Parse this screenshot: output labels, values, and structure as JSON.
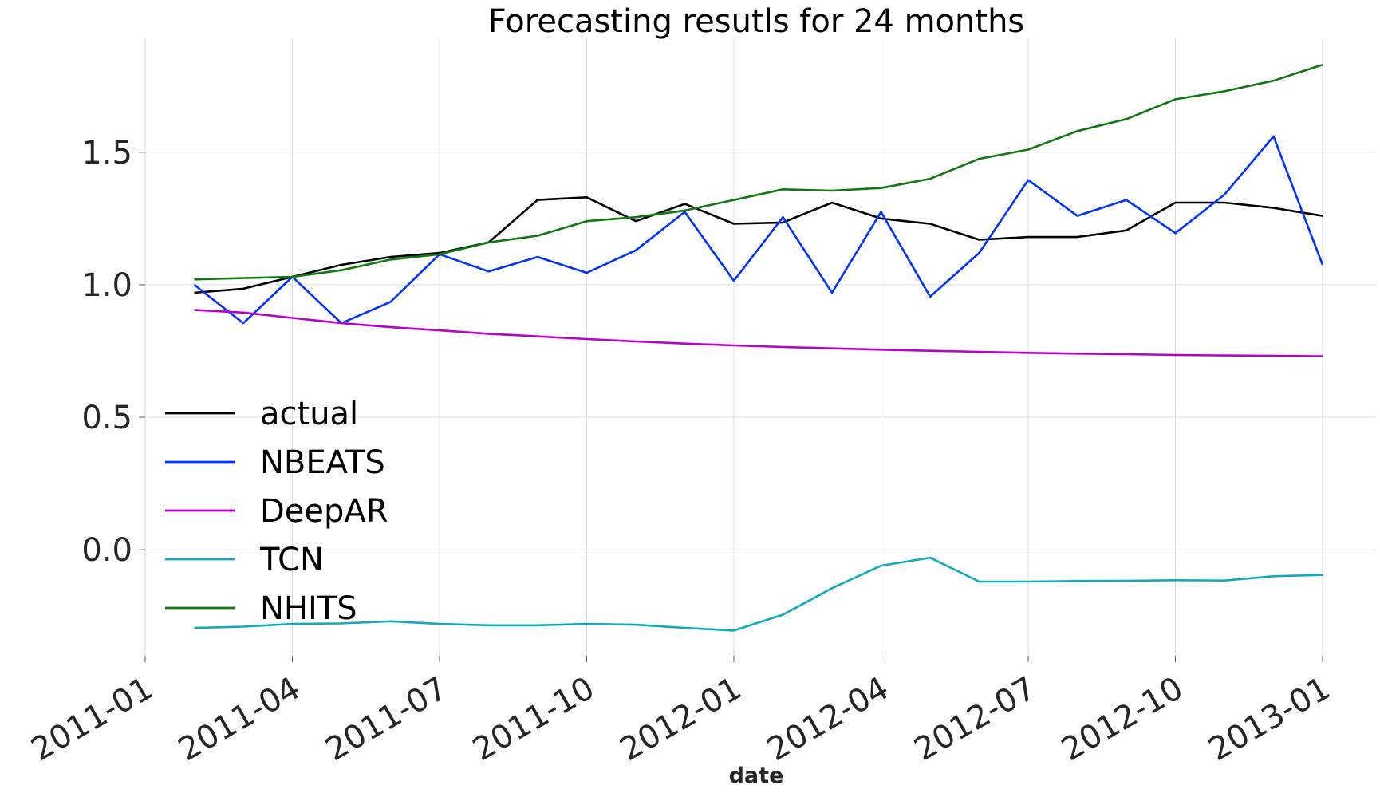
{
  "chart_data": {
    "type": "line",
    "title": "Forecasting resutls for 24 months",
    "xlabel": "date",
    "ylabel": "",
    "x_ticks": [
      "2011-01",
      "2011-04",
      "2011-07",
      "2011-10",
      "2012-01",
      "2012-04",
      "2012-07",
      "2012-10",
      "2013-01"
    ],
    "y_ticks": [
      "0.0",
      "0.5",
      "1.0",
      "1.5"
    ],
    "y_tick_values": [
      0.0,
      0.5,
      1.0,
      1.5
    ],
    "xlim": [
      "2011-01",
      "2013-01"
    ],
    "ylim": [
      -0.4,
      1.93
    ],
    "grid": true,
    "legend_position": "center-left",
    "x": [
      "2011-02",
      "2011-03",
      "2011-04",
      "2011-05",
      "2011-06",
      "2011-07",
      "2011-08",
      "2011-09",
      "2011-10",
      "2011-11",
      "2011-12",
      "2012-01",
      "2012-02",
      "2012-03",
      "2012-04",
      "2012-05",
      "2012-06",
      "2012-07",
      "2012-08",
      "2012-09",
      "2012-10",
      "2012-11",
      "2012-12",
      "2013-01"
    ],
    "series": [
      {
        "name": "actual",
        "color": "#000000",
        "values": [
          0.97,
          0.985,
          1.03,
          1.075,
          1.105,
          1.12,
          1.16,
          1.32,
          1.33,
          1.24,
          1.305,
          1.23,
          1.235,
          1.31,
          1.25,
          1.23,
          1.17,
          1.18,
          1.18,
          1.205,
          1.31,
          1.31,
          1.29,
          1.26
        ]
      },
      {
        "name": "NBEATS",
        "color": "#0033ff",
        "values": [
          1.0,
          0.855,
          1.03,
          0.855,
          0.935,
          1.115,
          1.05,
          1.105,
          1.045,
          1.13,
          1.275,
          1.015,
          1.255,
          0.97,
          1.275,
          0.955,
          1.12,
          1.395,
          1.26,
          1.32,
          1.195,
          1.34,
          1.56,
          1.075
        ]
      },
      {
        "name": "DeepAR",
        "color": "#bb00cc",
        "values": [
          0.905,
          0.895,
          0.875,
          0.855,
          0.84,
          0.828,
          0.815,
          0.805,
          0.795,
          0.786,
          0.778,
          0.771,
          0.765,
          0.76,
          0.755,
          0.751,
          0.747,
          0.743,
          0.74,
          0.738,
          0.735,
          0.733,
          0.732,
          0.73
        ]
      },
      {
        "name": "TCN",
        "color": "#11aabb",
        "values": [
          -0.295,
          -0.29,
          -0.28,
          -0.278,
          -0.27,
          -0.28,
          -0.285,
          -0.285,
          -0.28,
          -0.283,
          -0.295,
          -0.305,
          -0.245,
          -0.145,
          -0.06,
          -0.03,
          -0.12,
          -0.12,
          -0.118,
          -0.117,
          -0.115,
          -0.116,
          -0.1,
          -0.095
        ]
      },
      {
        "name": "NHITS",
        "color": "#117711",
        "values": [
          1.02,
          1.025,
          1.03,
          1.055,
          1.095,
          1.115,
          1.16,
          1.185,
          1.24,
          1.255,
          1.28,
          1.32,
          1.36,
          1.355,
          1.365,
          1.4,
          1.475,
          1.51,
          1.58,
          1.625,
          1.7,
          1.73,
          1.77,
          1.83
        ]
      }
    ]
  }
}
